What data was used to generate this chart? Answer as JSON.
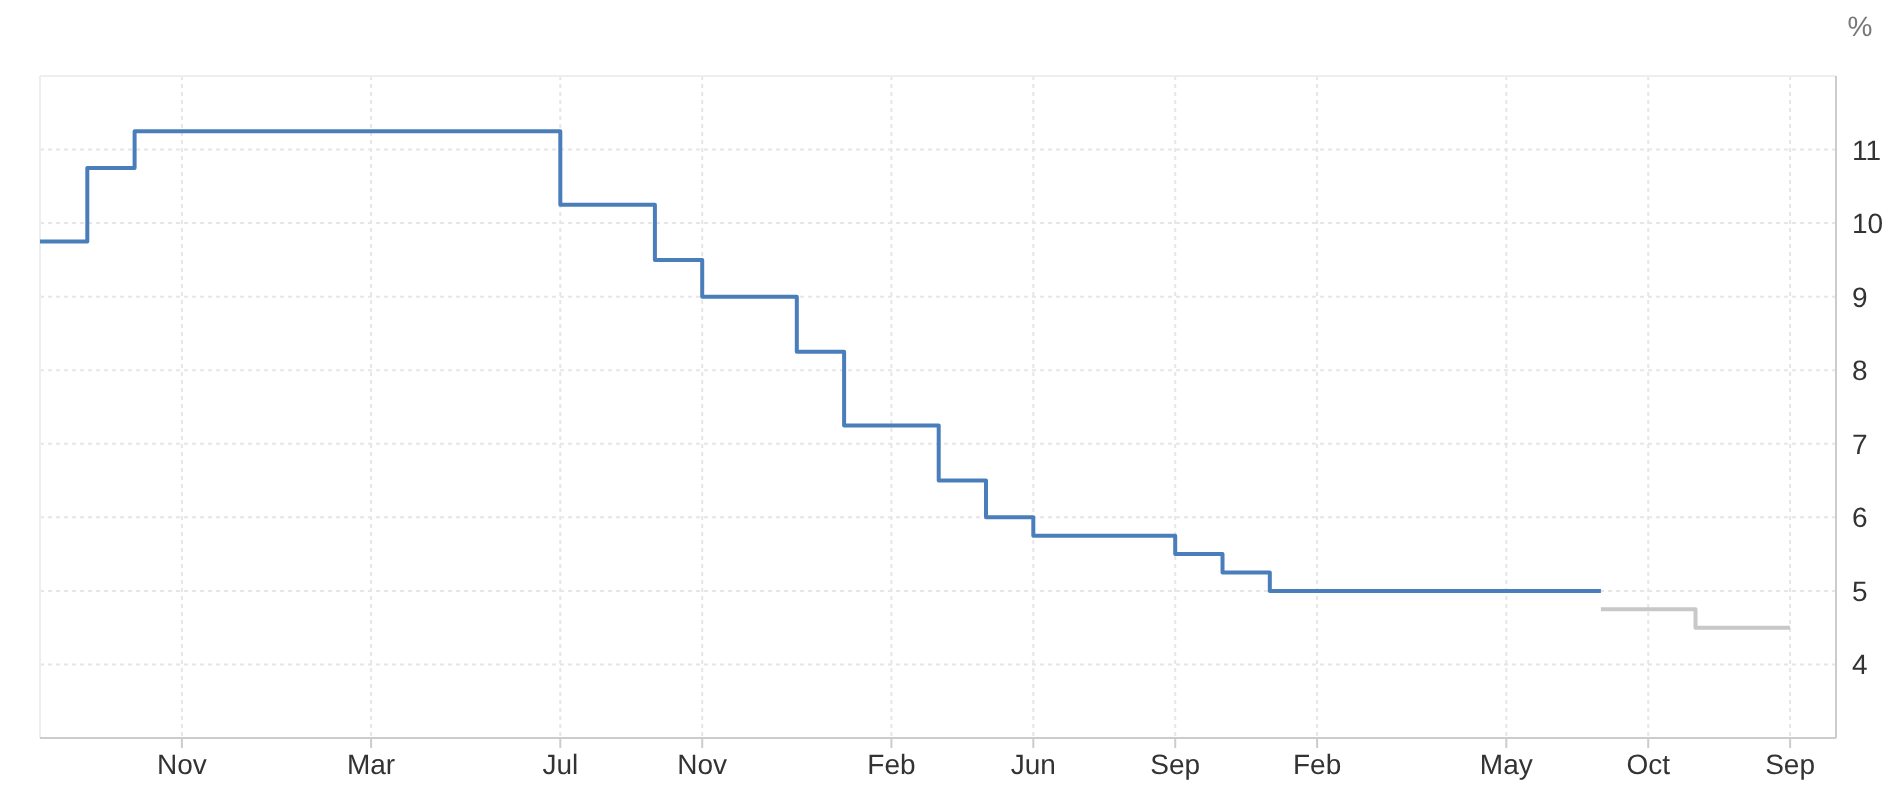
{
  "chart_data": {
    "type": "step",
    "ylabel": "%",
    "ylim": [
      3,
      12
    ],
    "categories": [
      null,
      null,
      null,
      "Nov",
      null,
      null,
      null,
      "Mar",
      null,
      null,
      null,
      "Jul",
      null,
      null,
      "Nov",
      null,
      null,
      null,
      "Feb",
      null,
      null,
      "Jun",
      null,
      null,
      "Sep",
      null,
      null,
      "Feb",
      null,
      null,
      null,
      "May",
      null,
      null,
      "Oct",
      null,
      null,
      "Sep"
    ],
    "yticks": [
      4,
      5,
      6,
      7,
      8,
      9,
      10,
      11
    ],
    "grid": true,
    "series": [
      {
        "color": "#4a7ebb",
        "values": [
          9.75,
          10.75,
          11.25,
          11.25,
          11.25,
          11.25,
          11.25,
          11.25,
          11.25,
          11.25,
          11.25,
          10.25,
          10.25,
          9.5,
          9.0,
          9.0,
          8.25,
          7.25,
          7.25,
          6.5,
          6.0,
          5.75,
          5.75,
          5.75,
          5.5,
          5.25,
          5.0,
          5.0,
          5.0,
          5.0,
          5.0,
          5.0,
          5.0,
          5.0,
          null,
          null,
          null,
          null
        ]
      },
      {
        "color": "#c8c8c8",
        "values": [
          null,
          null,
          null,
          null,
          null,
          null,
          null,
          null,
          null,
          null,
          null,
          null,
          null,
          null,
          null,
          null,
          null,
          null,
          null,
          null,
          null,
          null,
          null,
          null,
          null,
          null,
          null,
          null,
          null,
          null,
          null,
          null,
          null,
          4.75,
          4.75,
          4.5,
          4.5,
          4.5
        ]
      }
    ]
  }
}
